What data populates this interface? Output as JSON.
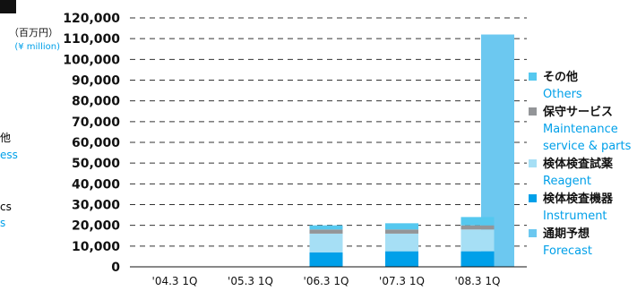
{
  "left_fragments": [
    {
      "text": "他",
      "color": "#111111"
    },
    {
      "text": "ess",
      "color": "#00a0e9"
    },
    {
      "text": "cs",
      "color": "#111111"
    },
    {
      "text": "s",
      "color": "#00a0e9"
    }
  ],
  "unit_jp": "（百万円）",
  "unit_en": "(¥ million)",
  "legend": [
    {
      "jp": "その他",
      "en": [
        "Others"
      ],
      "color": "#55c8ef"
    },
    {
      "jp": "保守サービス",
      "en": [
        "Maintenance",
        "service & parts"
      ],
      "color": "#939598"
    },
    {
      "jp": "検体検査試薬",
      "en": [
        "Reagent"
      ],
      "color": "#a6dff5"
    },
    {
      "jp": "検体検査機器",
      "en": [
        "Instrument"
      ],
      "color": "#00a0e9"
    },
    {
      "jp": "通期予想",
      "en": [
        "Forecast"
      ],
      "color": "#6cc8f0"
    }
  ],
  "chart_data": {
    "type": "bar",
    "stacked": true,
    "categories": [
      "'04.3 1Q",
      "'05.3 1Q",
      "'06.3 1Q",
      "'07.3 1Q",
      "'08.3 1Q"
    ],
    "ylim": [
      0,
      120000
    ],
    "yticks": [
      "0",
      "10,000",
      "20,000",
      "30,000",
      "40,000",
      "50,000",
      "60,000",
      "70,000",
      "80,000",
      "90,000",
      "100,000",
      "110,000",
      "120,000"
    ],
    "grid": "dashed-horizontal",
    "series": [
      {
        "name": "検体検査機器 Instrument",
        "color": "#00a0e9",
        "values": [
          0,
          0,
          7000,
          7500,
          7500
        ]
      },
      {
        "name": "検体検査試薬 Reagent",
        "color": "#a6dff5",
        "values": [
          0,
          0,
          9000,
          8500,
          10500
        ]
      },
      {
        "name": "保守サービス Maintenance service & parts",
        "color": "#939598",
        "values": [
          0,
          0,
          2000,
          2000,
          2000
        ]
      },
      {
        "name": "その他 Others",
        "color": "#55c8ef",
        "values": [
          0,
          0,
          2000,
          3000,
          4000
        ]
      }
    ],
    "forecast": {
      "name": "通期予想 Forecast",
      "color": "#6cc8f0",
      "category": "'08.3 1Q",
      "value": 112000
    }
  }
}
